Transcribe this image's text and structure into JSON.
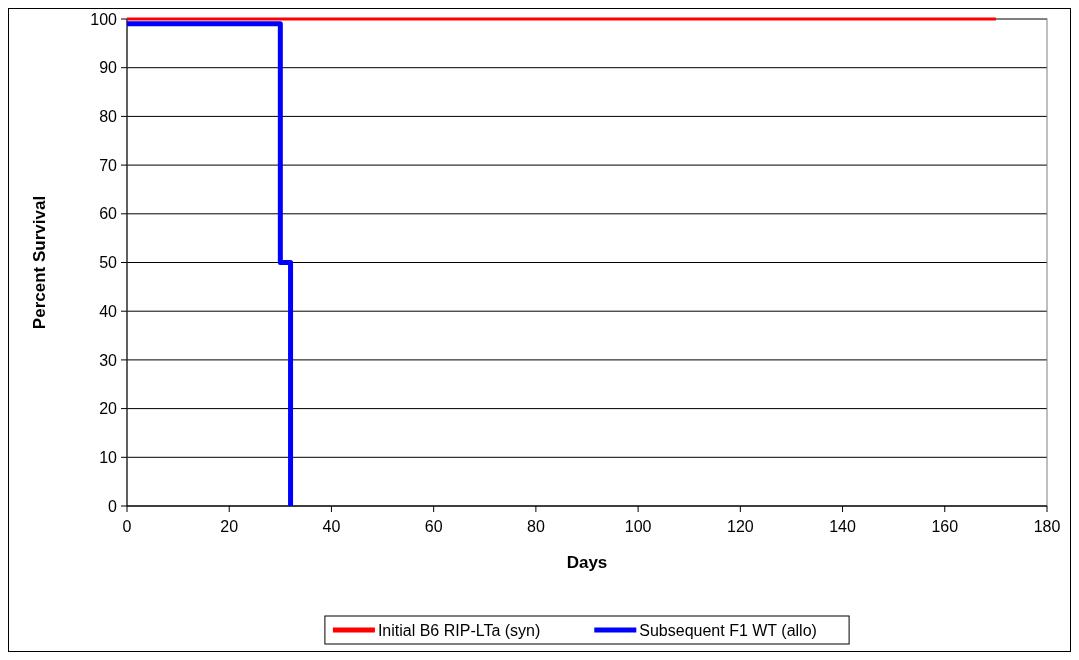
{
  "chart_data": {
    "type": "step",
    "xlabel": "Days",
    "ylabel": "Percent Survival",
    "xlim": [
      0,
      180
    ],
    "xticks": [
      0,
      20,
      40,
      60,
      80,
      100,
      120,
      140,
      160,
      180
    ],
    "ylim": [
      0,
      100
    ],
    "yticks": [
      0,
      10,
      20,
      30,
      40,
      50,
      60,
      70,
      80,
      90,
      100
    ],
    "grid": "y",
    "legend": "bottom",
    "series": [
      {
        "name": "Initial B6 RIP-LTa (syn)",
        "color": "#ff0000",
        "x": [
          0,
          170
        ],
        "values": [
          100,
          100
        ]
      },
      {
        "name": "Subsequent F1 WT (allo)",
        "color": "#0000ff",
        "x": [
          0,
          30,
          32
        ],
        "values": [
          99,
          50,
          0
        ]
      }
    ]
  }
}
